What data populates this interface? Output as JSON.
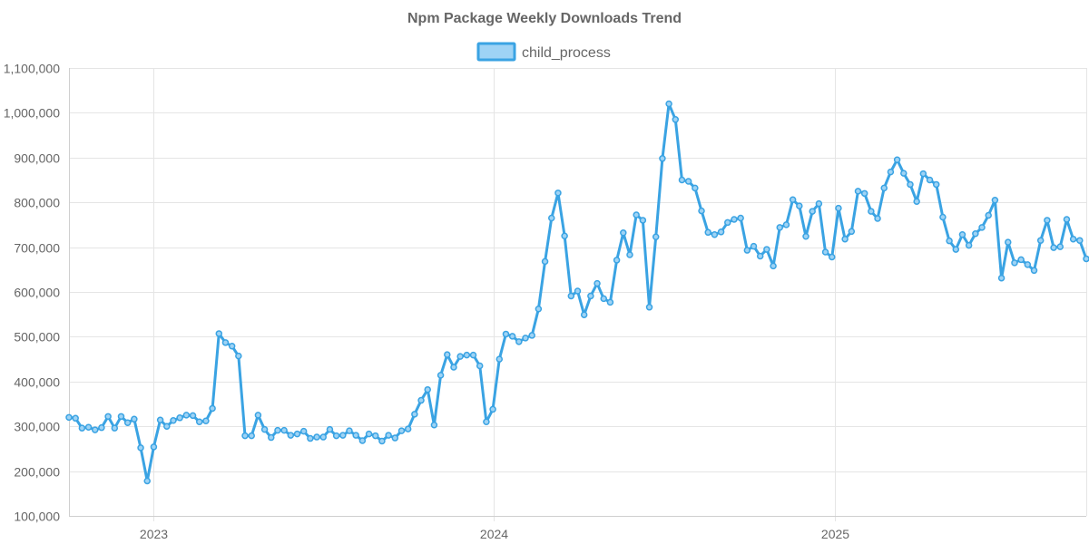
{
  "chart_data": {
    "type": "line",
    "title": "Npm Package Weekly Downloads Trend",
    "xlabel": "",
    "ylabel": "",
    "x_start": "2022-10-02",
    "x_end": "2025-09-28",
    "x_interval_days": 7,
    "x_tick_labels": [
      "2023",
      "2024",
      "2025"
    ],
    "x_tick_dates": [
      "2023-01-01",
      "2024-01-01",
      "2025-01-01"
    ],
    "ylim": [
      100000,
      1100000
    ],
    "y_ticks": [
      100000,
      200000,
      300000,
      400000,
      500000,
      600000,
      700000,
      800000,
      900000,
      1000000,
      1100000
    ],
    "y_tick_labels": [
      "100,000",
      "200,000",
      "300,000",
      "400,000",
      "500,000",
      "600,000",
      "700,000",
      "800,000",
      "900,000",
      "1,000,000",
      "1,100,000"
    ],
    "grid": true,
    "legend_position": "top-center",
    "colors": {
      "line": "#3aa3e3",
      "fill": "#9ed3f5",
      "grid": "#e5e5e5",
      "text": "#666666"
    },
    "series": [
      {
        "name": "child_process",
        "values": [
          320000,
          318000,
          296000,
          298000,
          292000,
          297000,
          322000,
          296000,
          322000,
          308000,
          316000,
          252000,
          178000,
          254000,
          314000,
          300000,
          313000,
          319000,
          325000,
          324000,
          310000,
          312000,
          340000,
          507000,
          487000,
          479000,
          457000,
          279000,
          279000,
          325000,
          293000,
          275000,
          291000,
          291000,
          280000,
          283000,
          289000,
          273000,
          276000,
          276000,
          293000,
          279000,
          280000,
          290000,
          280000,
          268000,
          283000,
          279000,
          267000,
          280000,
          274000,
          290000,
          294000,
          327000,
          358000,
          382000,
          303000,
          414000,
          460000,
          432000,
          456000,
          459000,
          459000,
          435000,
          310000,
          338000,
          450000,
          506000,
          501000,
          489000,
          497000,
          503000,
          562000,
          668000,
          765000,
          821000,
          725000,
          591000,
          602000,
          549000,
          591000,
          619000,
          585000,
          577000,
          671000,
          732000,
          683000,
          772000,
          760000,
          566000,
          723000,
          898000,
          1020000,
          985000,
          850000,
          847000,
          832000,
          781000,
          733000,
          728000,
          734000,
          755000,
          762000,
          765000,
          693000,
          702000,
          680000,
          695000,
          658000,
          744000,
          750000,
          806000,
          792000,
          724000,
          780000,
          797000,
          689000,
          678000,
          787000,
          718000,
          735000,
          825000,
          820000,
          780000,
          764000,
          832000,
          868000,
          895000,
          865000,
          840000,
          802000,
          864000,
          850000,
          840000,
          767000,
          714000,
          695000,
          728000,
          704000,
          730000,
          744000,
          771000,
          805000,
          631000,
          711000,
          665000,
          672000,
          661000,
          648000,
          715000,
          760000,
          699000,
          701000,
          762000,
          718000,
          715000,
          674000
        ]
      }
    ]
  }
}
